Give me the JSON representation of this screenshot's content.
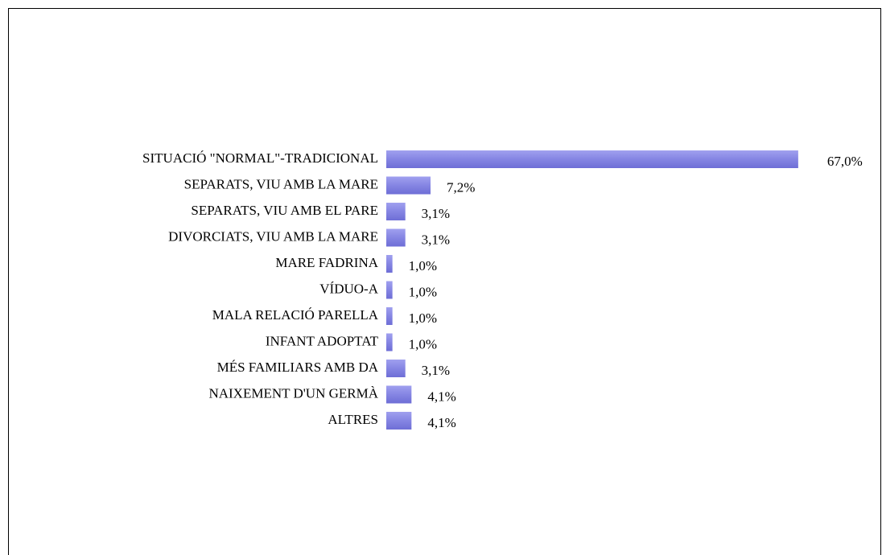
{
  "chart_data": {
    "type": "bar",
    "orientation": "horizontal",
    "categories": [
      "SITUACIÓ \"NORMAL\"-TRADICIONAL",
      "SEPARATS, VIU AMB LA MARE",
      "SEPARATS, VIU AMB EL PARE",
      "DIVORCIATS, VIU AMB LA MARE",
      "MARE FADRINA",
      "VÍDUO-A",
      "MALA RELACIÓ PARELLA",
      "INFANT ADOPTAT",
      "MÉS FAMILIARS AMB DA",
      "NAIXEMENT D'UN GERMÀ",
      "ALTRES"
    ],
    "values": [
      67.0,
      7.2,
      3.1,
      3.1,
      1.0,
      1.0,
      1.0,
      1.0,
      3.1,
      4.1,
      4.1
    ],
    "value_labels": [
      "67,0%",
      "7,2%",
      "3,1%",
      "3,1%",
      "1,0%",
      "1,0%",
      "1,0%",
      "1,0%",
      "3,1%",
      "4,1%",
      "4,1%"
    ],
    "color": "#8585e3"
  }
}
